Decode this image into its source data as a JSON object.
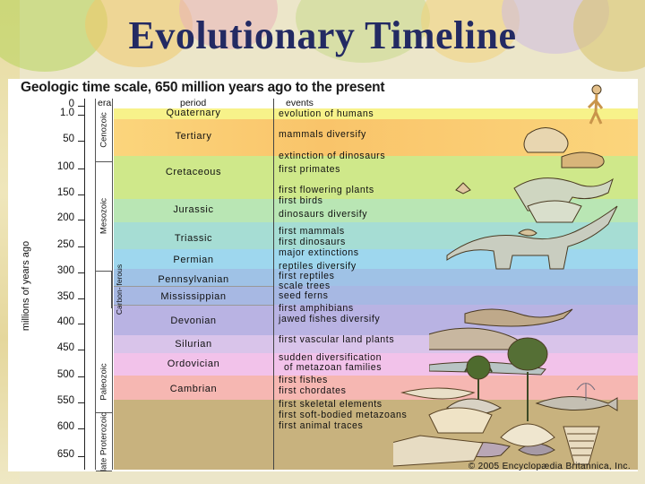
{
  "slide": {
    "title": "Evolutionary Timeline"
  },
  "chart": {
    "heading": "Geologic time scale, 650 million years ago to the present",
    "axis_label": "millions of years ago",
    "column_headers": {
      "era": "era",
      "period": "period",
      "events": "events"
    },
    "axis_ticks": [
      "0",
      "1.0",
      "50",
      "100",
      "150",
      "200",
      "250",
      "300",
      "350",
      "400",
      "450",
      "500",
      "550",
      "600",
      "650"
    ],
    "eras": [
      {
        "label": "Cenozoic"
      },
      {
        "label": "Mesozoic"
      },
      {
        "label": "Paleozoic"
      },
      {
        "label": "Carbon-iferous"
      },
      {
        "label": "late Proterozoic"
      }
    ],
    "periods": [
      {
        "label": "Quaternary",
        "color": "#f7f28a"
      },
      {
        "label": "Tertiary",
        "color": "#fbd57c"
      },
      {
        "label": "Cretaceous",
        "color": "#cfe88a"
      },
      {
        "label": "Jurassic",
        "color": "#b9e6b4"
      },
      {
        "label": "Triassic",
        "color": "#a6ddd4"
      },
      {
        "label": "Permian",
        "color": "#9ed7ee"
      },
      {
        "label": "Pennsylvanian",
        "color": "#9fc2e6"
      },
      {
        "label": "Mississippian",
        "color": "#a7b8e3"
      },
      {
        "label": "Devonian",
        "color": "#b9b3e3"
      },
      {
        "label": "Silurian",
        "color": "#d9c4ea"
      },
      {
        "label": "Ordovician",
        "color": "#f2c2ea"
      },
      {
        "label": "Cambrian",
        "color": "#f6b7b2"
      },
      {
        "label": "",
        "color": "#c8b27e"
      }
    ],
    "events": [
      "evolution of humans",
      "mammals diversify",
      "extinction of dinosaurs",
      "first primates",
      "first flowering plants",
      "first birds",
      "dinosaurs diversify",
      "first mammals",
      "first dinosaurs",
      "major extinctions",
      "reptiles diversify",
      "first reptiles",
      "scale trees",
      "seed ferns",
      "first amphibians",
      "jawed fishes diversify",
      "first vascular land plants",
      "sudden diversification",
      "of metazoan families",
      "first fishes",
      "first chordates",
      "first skeletal elements",
      "first soft-bodied metazoans",
      "first animal traces"
    ],
    "credit": "© 2005 Encyclopædia Britannica, Inc."
  }
}
